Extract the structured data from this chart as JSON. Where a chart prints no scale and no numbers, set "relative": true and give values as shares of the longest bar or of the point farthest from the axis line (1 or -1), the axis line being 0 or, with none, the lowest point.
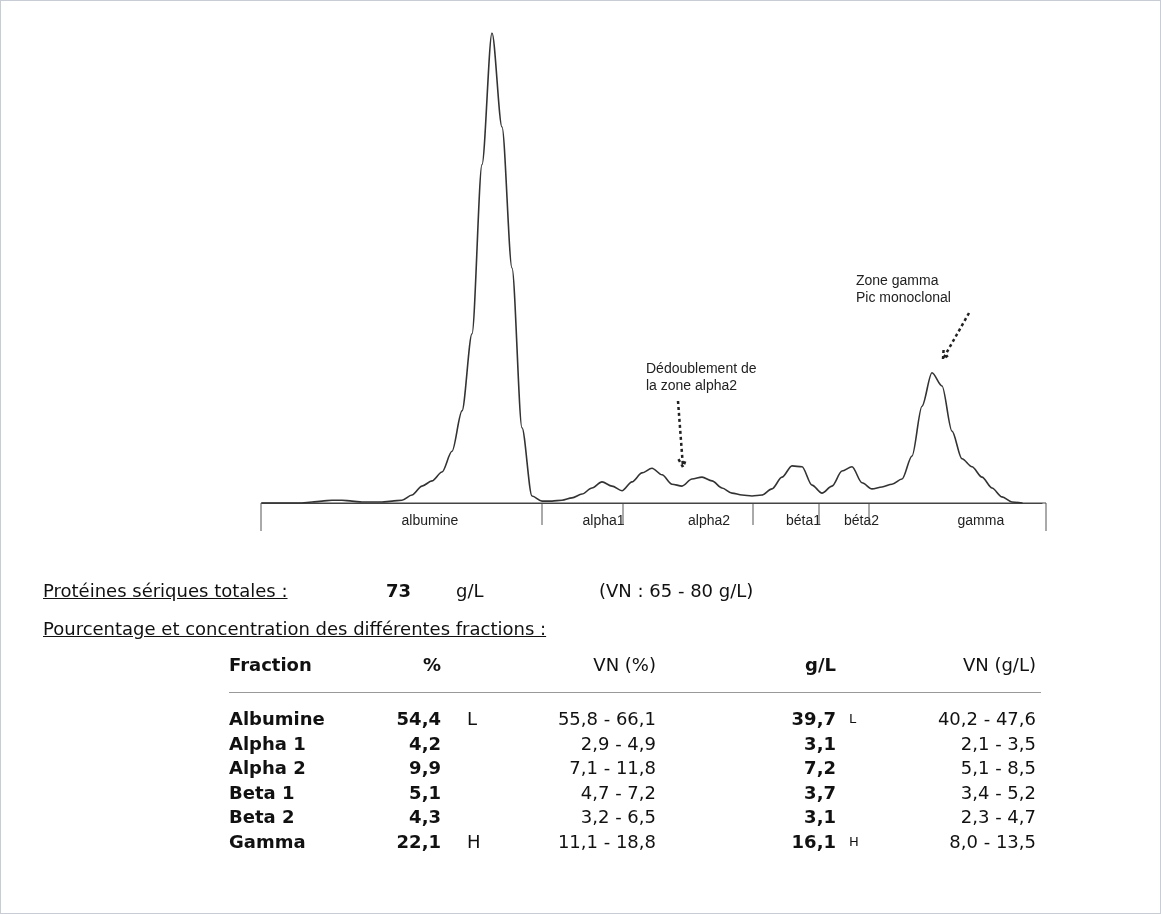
{
  "chart_data": [
    {
      "type": "line",
      "relative": true,
      "color": "#333333",
      "marker": "none",
      "line_style": "solid",
      "categories": [
        null,
        null,
        null,
        null,
        null,
        null,
        null,
        null,
        null,
        null,
        null,
        null,
        null,
        null,
        null,
        null,
        null,
        null,
        null,
        null,
        null,
        null,
        null,
        null,
        null,
        null,
        null,
        null,
        null,
        null,
        null,
        null,
        null,
        null,
        null,
        null,
        null,
        null,
        null,
        null,
        null,
        null,
        null,
        null,
        null,
        null,
        null,
        null,
        null,
        null,
        null,
        null,
        null,
        null,
        null,
        null,
        null,
        null,
        null,
        null,
        null,
        null,
        null,
        null,
        null,
        null,
        null,
        null,
        null,
        null,
        null,
        null,
        null,
        null,
        null,
        null,
        null,
        null,
        null
      ],
      "values": [
        0,
        0,
        0,
        0,
        0,
        0.002,
        0.004,
        0.006,
        0.006,
        0.004,
        0.002,
        0.002,
        0.002,
        0.004,
        0.006,
        0.017,
        0.036,
        0.047,
        0.066,
        0.11,
        0.196,
        0.36,
        0.72,
        1,
        0.8,
        0.5,
        0.16,
        0.015,
        0.004,
        0.004,
        0.006,
        0.011,
        0.019,
        0.032,
        0.045,
        0.036,
        0.026,
        0.045,
        0.064,
        0.074,
        0.06,
        0.04,
        0.036,
        0.051,
        0.055,
        0.047,
        0.032,
        0.021,
        0.017,
        0.015,
        0.017,
        0.03,
        0.055,
        0.079,
        0.077,
        0.038,
        0.021,
        0.036,
        0.068,
        0.077,
        0.043,
        0.03,
        0.034,
        0.04,
        0.051,
        0.1,
        0.206,
        0.277,
        0.249,
        0.153,
        0.094,
        0.077,
        0.055,
        0.032,
        0.013,
        0.002,
        0,
        null,
        null
      ],
      "annotations": [
        "albumine",
        "alpha1",
        "alpha2",
        "béta1",
        "béta2",
        "gamma",
        "Dédoublement de\nla zone alpha2",
        "Zone gamma\nPic monoclonal"
      ]
    },
    {
      "type": "other",
      "annotations": [
        "Protéines sériques totales :",
        "73",
        "g/L",
        "(VN : 65 - 80 g/L)",
        "Pourcentage et concentration des différentes fractions :"
      ],
      "categories": [
        "Fraction",
        "%",
        null,
        "VN (%)",
        "g/L",
        null,
        "VN (g/L)"
      ],
      "cell_labels": [
        [
          "Albumine",
          "54,4",
          "L",
          "55,8 - 66,1",
          "39,7",
          "L",
          "40,2 - 47,6"
        ],
        [
          "Alpha 1",
          "4,2",
          null,
          "2,9 - 4,9",
          "3,1",
          null,
          "2,1 - 3,5"
        ],
        [
          "Alpha 2",
          "9,9",
          null,
          "7,1 - 11,8",
          "7,2",
          null,
          "5,1 - 8,5"
        ],
        [
          "Beta 1",
          "5,1",
          null,
          "4,7 - 7,2",
          "3,7",
          null,
          "3,4 - 5,2"
        ],
        [
          "Beta 2",
          "4,3",
          null,
          "3,2 - 6,5",
          "3,1",
          null,
          "2,3 - 4,7"
        ],
        [
          "Gamma",
          "22,1",
          "H",
          "11,1 - 18,8",
          "16,1",
          "H",
          "8,0 - 13,5"
        ]
      ]
    }
  ]
}
